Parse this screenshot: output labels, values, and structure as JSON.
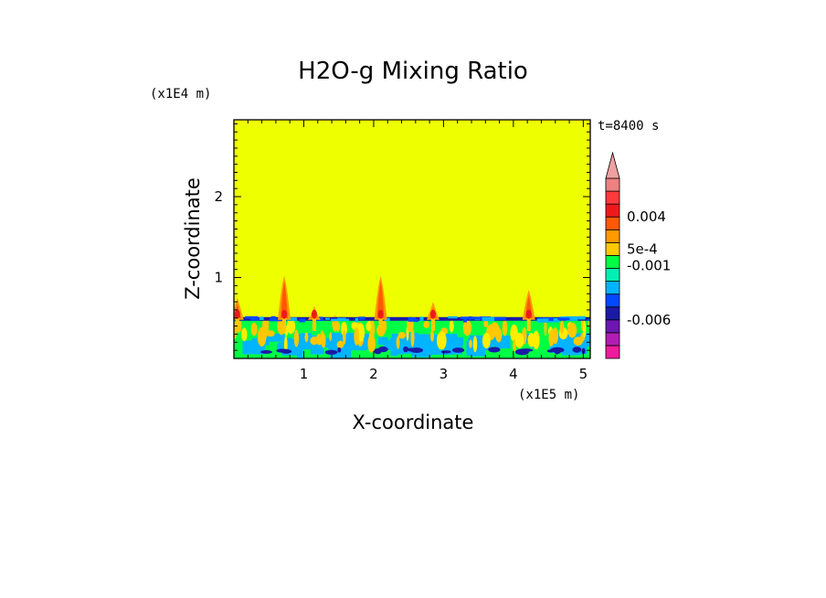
{
  "chart_data": {
    "type": "heatmap",
    "title": "H2O-g Mixing Ratio",
    "xlabel": "X-coordinate",
    "ylabel": "Z-coordinate",
    "x_units": "(x1E5 m)",
    "y_units": "(x1E4 m)",
    "time_label": "t=8400 s",
    "xlim": [
      0,
      5.1
    ],
    "ylim": [
      0,
      2.95
    ],
    "x_ticks": [
      1,
      2,
      3,
      4,
      5
    ],
    "y_ticks": [
      1,
      2
    ],
    "background_color": "#eeff00",
    "layer_top": 0.5,
    "plumes": [
      {
        "x": 0.05,
        "top": 0.75
      },
      {
        "x": 0.72,
        "top": 1.02
      },
      {
        "x": 1.15,
        "top": 0.65
      },
      {
        "x": 2.1,
        "top": 1.02
      },
      {
        "x": 2.85,
        "top": 0.7
      },
      {
        "x": 4.22,
        "top": 0.85
      }
    ],
    "colorbar": {
      "colors": [
        "#ee1c9c",
        "#b21cb4",
        "#6e16b4",
        "#1a1aa6",
        "#0049ff",
        "#00b4ff",
        "#00f0b4",
        "#00ff44",
        "#ffc800",
        "#ff9a00",
        "#ff5a00",
        "#ee1a1a",
        "#ff3a3a",
        "#ee8080"
      ],
      "extend_color": "#f0a0a0",
      "labels": [
        "0.004",
        "5e-4",
        "-0.001",
        "-0.006"
      ]
    }
  }
}
